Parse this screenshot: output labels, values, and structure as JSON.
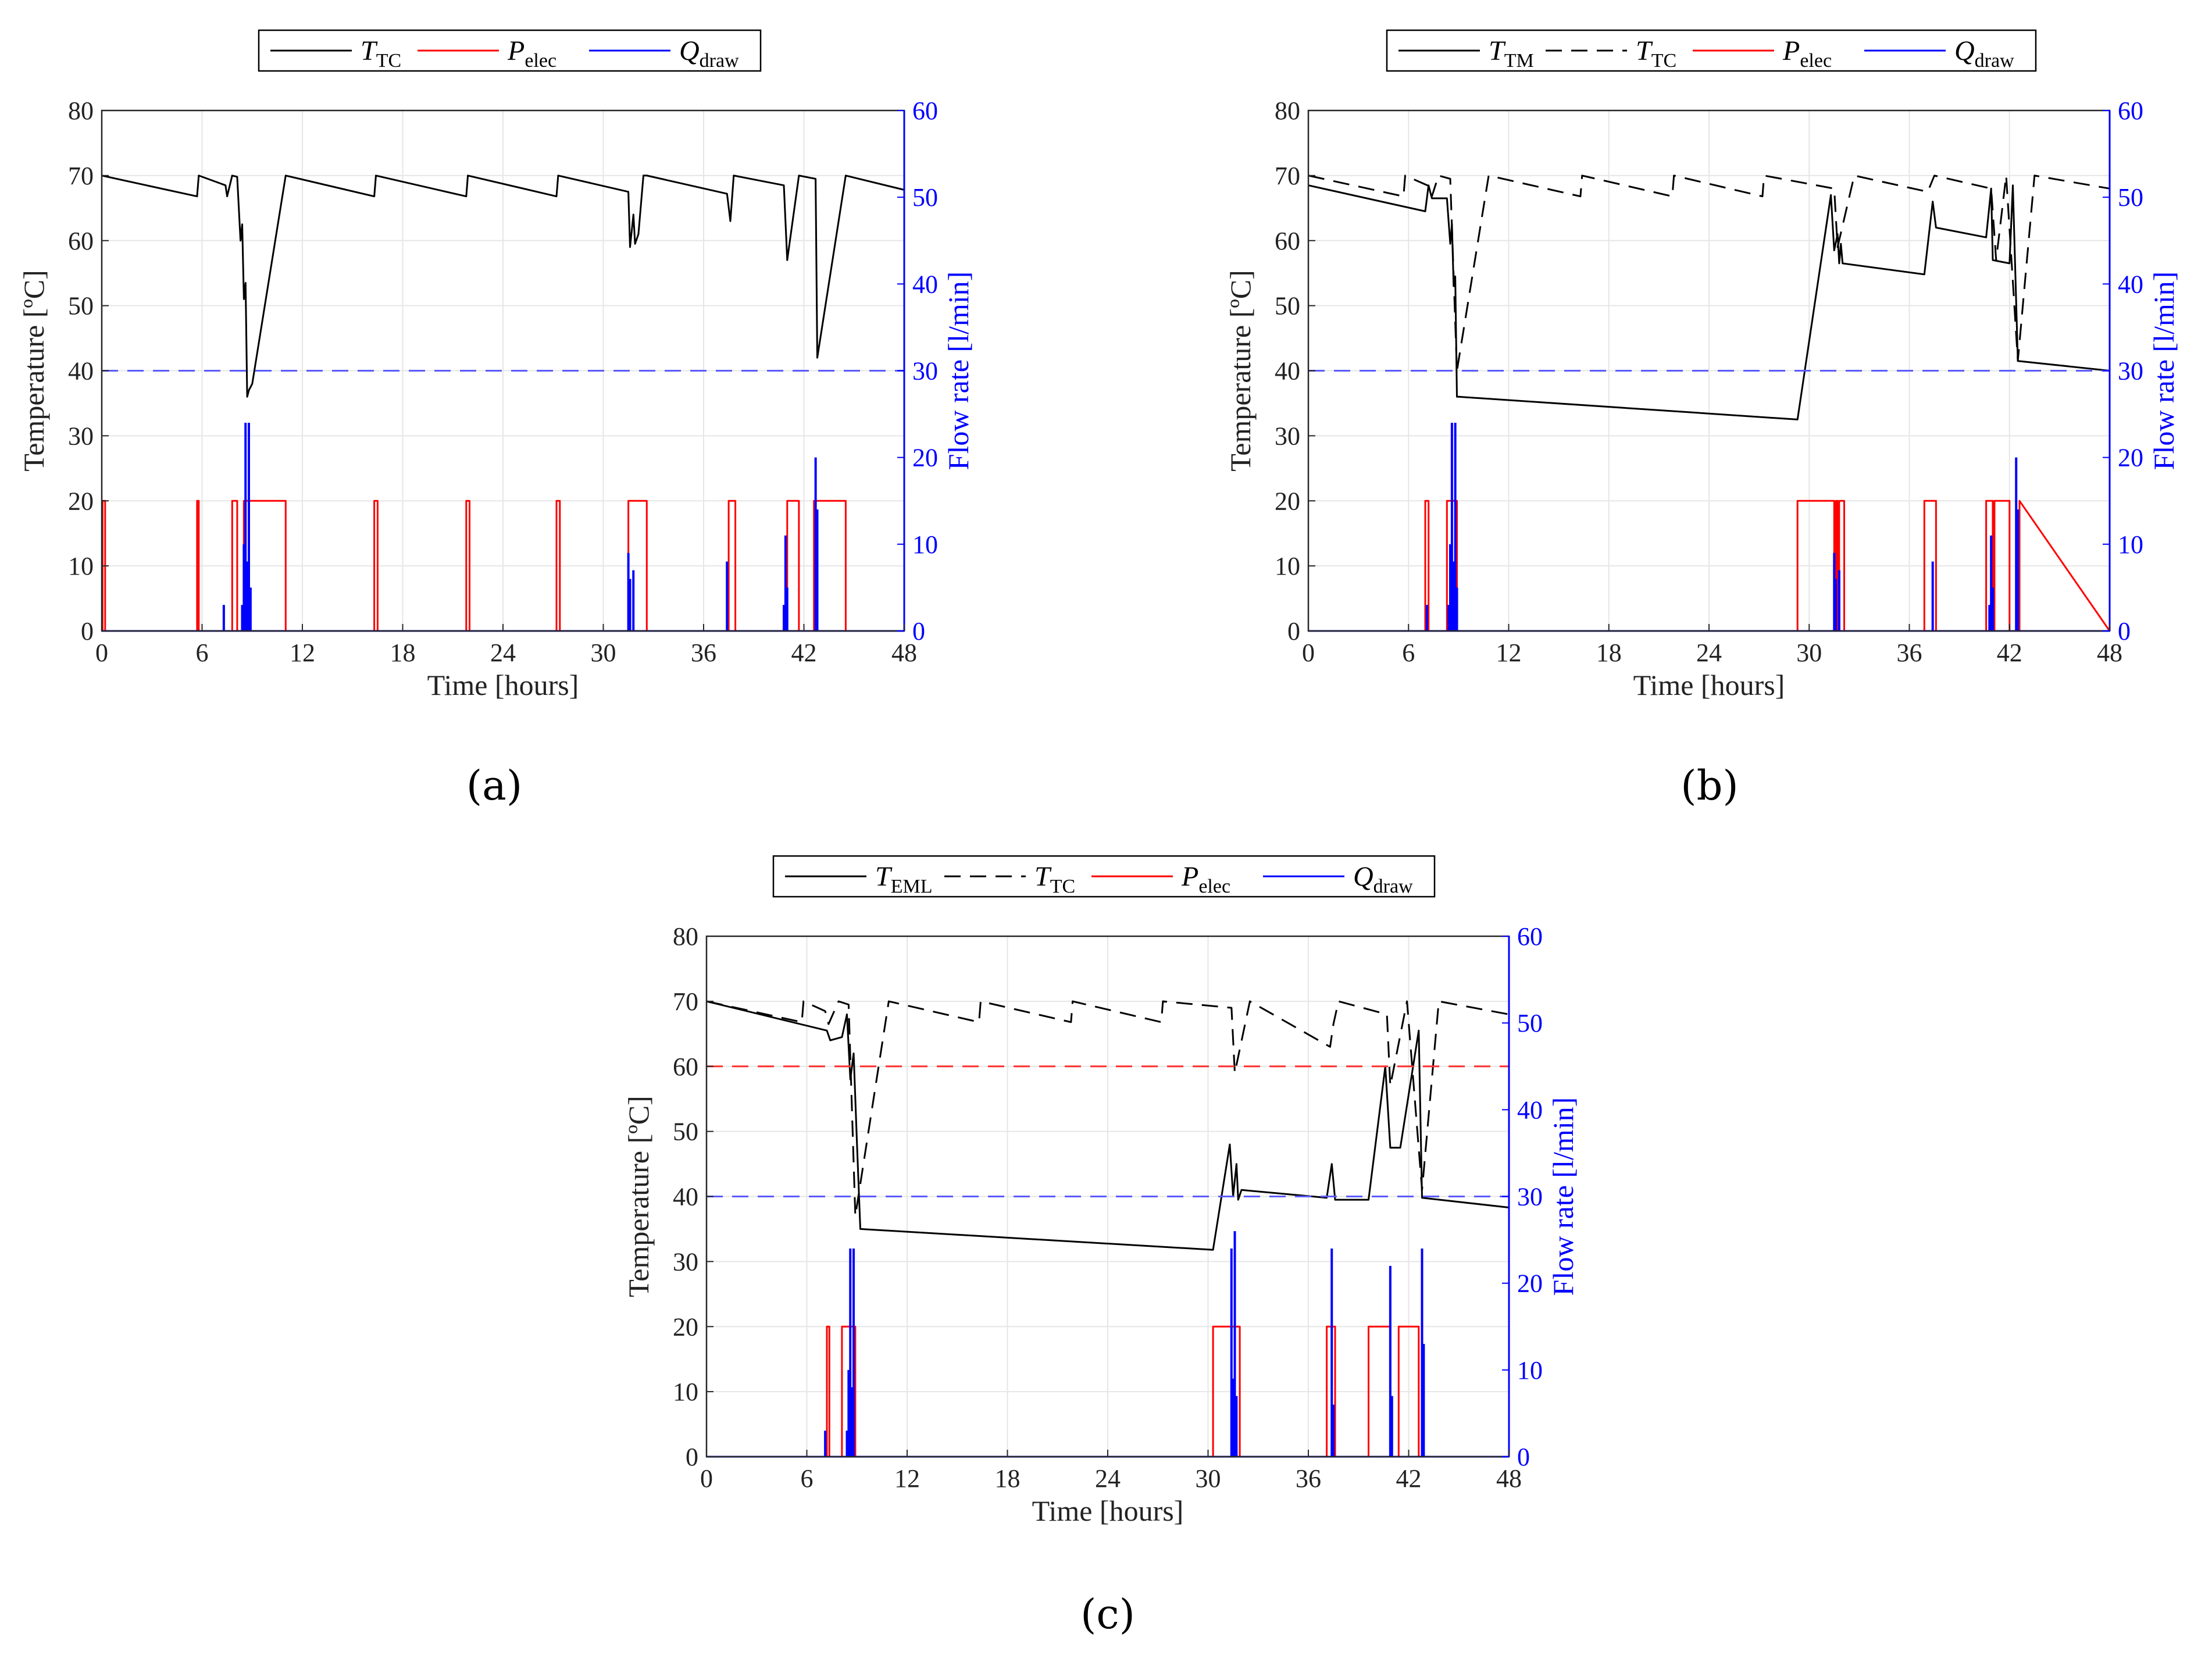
{
  "figure": {
    "panels": [
      {
        "label": "(a)"
      },
      {
        "label": "(b)"
      },
      {
        "label": "(c)"
      }
    ]
  },
  "colors": {
    "temperature": "#000000",
    "power": "#ff0000",
    "flow": "#0000ff",
    "flow_threshold": "#5a5aff",
    "temp_threshold": "#ff3030",
    "grid": "#e6e6e6",
    "axis": "#262626"
  },
  "chart_data": [
    {
      "type": "line",
      "panel": "(a)",
      "xlabel": "Time [hours]",
      "ylabel": "Temperature [ºC]",
      "ylabel_right": "Flow rate [l/min]",
      "xlim": [
        0,
        48
      ],
      "ylim": [
        0,
        80
      ],
      "ylim_right": [
        0,
        60
      ],
      "xticks": [
        0,
        6,
        12,
        18,
        24,
        30,
        36,
        42,
        48
      ],
      "yticks": [
        0,
        10,
        20,
        30,
        40,
        50,
        60,
        70,
        80
      ],
      "yticks_right": [
        0,
        10,
        20,
        30,
        40,
        50,
        60
      ],
      "grid": true,
      "legend": [
        {
          "symbol": "T",
          "sub": "TC",
          "style": "solid",
          "color": "#000000"
        },
        {
          "symbol": "P",
          "sub": "elec",
          "style": "solid",
          "color": "#ff0000"
        },
        {
          "symbol": "Q",
          "sub": "draw",
          "style": "solid",
          "color": "#0000ff"
        }
      ],
      "series": [
        {
          "name": "T_TC",
          "axis": "left",
          "style": "solid",
          "color": "#000000",
          "x": [
            0,
            5.7,
            5.8,
            7.4,
            7.5,
            7.8,
            8.1,
            8.3,
            8.4,
            8.5,
            8.6,
            8.7,
            8.8,
            9.0,
            11.0,
            16.3,
            16.4,
            21.8,
            21.9,
            27.2,
            27.3,
            31.5,
            31.6,
            31.8,
            31.9,
            32.1,
            32.4,
            32.6,
            37.4,
            37.6,
            37.8,
            40.8,
            41.0,
            41.7,
            42.7,
            42.8,
            44.5,
            48
          ],
          "y": [
            70,
            66.8,
            70,
            68.5,
            66.8,
            70,
            69.8,
            60,
            62.5,
            51,
            53.5,
            36,
            37,
            38,
            70,
            66.8,
            70,
            66.8,
            70,
            66.8,
            70,
            67.5,
            59,
            64,
            59.5,
            61,
            70,
            70,
            67.2,
            63,
            70,
            68.5,
            57,
            70,
            69.5,
            42,
            70,
            67.8
          ]
        },
        {
          "name": "P_elec",
          "axis": "left",
          "style": "solid",
          "color": "#ff0000",
          "x": [
            0,
            0.05,
            0.05,
            0.2,
            0.2,
            5.7,
            5.7,
            5.8,
            5.8,
            7.8,
            7.8,
            8.1,
            8.1,
            8.5,
            8.5,
            11.0,
            11.0,
            16.3,
            16.3,
            16.5,
            16.5,
            21.8,
            21.8,
            22.0,
            22.0,
            27.2,
            27.2,
            27.4,
            27.4,
            31.5,
            31.5,
            32.6,
            32.6,
            37.5,
            37.5,
            37.9,
            37.9,
            41.0,
            41.0,
            41.7,
            41.7,
            42.6,
            42.6,
            44.5,
            44.5,
            48
          ],
          "y": [
            0,
            0,
            20,
            20,
            0,
            0,
            20,
            20,
            0,
            0,
            20,
            20,
            0,
            0,
            20,
            20,
            0,
            0,
            20,
            20,
            0,
            0,
            20,
            20,
            0,
            0,
            20,
            20,
            0,
            0,
            20,
            20,
            0,
            0,
            20,
            20,
            0,
            0,
            20,
            20,
            0,
            0,
            20,
            20,
            0,
            0
          ]
        },
        {
          "name": "Q_draw",
          "axis": "right",
          "style": "solid",
          "color": "#0000ff",
          "spikes": [
            [
              7.3,
              3
            ],
            [
              8.4,
              3
            ],
            [
              8.5,
              10
            ],
            [
              8.6,
              24
            ],
            [
              8.7,
              8
            ],
            [
              8.8,
              24
            ],
            [
              8.9,
              5
            ],
            [
              31.5,
              9
            ],
            [
              31.6,
              6
            ],
            [
              31.8,
              7
            ],
            [
              37.4,
              8
            ],
            [
              40.8,
              3
            ],
            [
              40.9,
              11
            ],
            [
              41.0,
              5
            ],
            [
              42.7,
              20
            ],
            [
              42.8,
              14
            ]
          ]
        },
        {
          "name": "Q threshold",
          "axis": "right",
          "style": "dashed",
          "color": "#5a5aff",
          "x": [
            0,
            48
          ],
          "y": [
            30,
            30
          ]
        }
      ]
    },
    {
      "type": "line",
      "panel": "(b)",
      "xlabel": "Time [hours]",
      "ylabel": "Temperature [ºC]",
      "ylabel_right": "Flow rate [l/min]",
      "xlim": [
        0,
        48
      ],
      "ylim": [
        0,
        80
      ],
      "ylim_right": [
        0,
        60
      ],
      "xticks": [
        0,
        6,
        12,
        18,
        24,
        30,
        36,
        42,
        48
      ],
      "yticks": [
        0,
        10,
        20,
        30,
        40,
        50,
        60,
        70,
        80
      ],
      "yticks_right": [
        0,
        10,
        20,
        30,
        40,
        50,
        60
      ],
      "grid": true,
      "legend": [
        {
          "symbol": "T",
          "sub": "TM",
          "style": "solid",
          "color": "#000000"
        },
        {
          "symbol": "T",
          "sub": "TC",
          "style": "dashed",
          "color": "#000000"
        },
        {
          "symbol": "P",
          "sub": "elec",
          "style": "solid",
          "color": "#ff0000"
        },
        {
          "symbol": "Q",
          "sub": "draw",
          "style": "solid",
          "color": "#0000ff"
        }
      ],
      "series": [
        {
          "name": "T_TM",
          "axis": "left",
          "style": "solid",
          "color": "#000000",
          "x": [
            0,
            7.0,
            7.2,
            7.4,
            8.3,
            8.5,
            8.6,
            8.7,
            8.8,
            8.9,
            9.0,
            29.3,
            31.3,
            31.5,
            31.7,
            31.8,
            31.9,
            32.0,
            36.9,
            37.4,
            37.6,
            40.6,
            40.9,
            41.0,
            42.0,
            42.2,
            42.5,
            48
          ],
          "y": [
            68.5,
            64.5,
            68.5,
            66.5,
            66.5,
            59.5,
            62.5,
            53,
            54.5,
            36,
            36,
            32.5,
            67,
            58.5,
            61,
            56.5,
            59.5,
            56.5,
            54.8,
            66,
            62,
            60.5,
            68,
            57,
            56.5,
            68.5,
            41.5,
            40
          ]
        },
        {
          "name": "T_TC",
          "axis": "left",
          "style": "dashed",
          "color": "#000000",
          "x": [
            0,
            5.7,
            5.8,
            7.3,
            7.4,
            7.8,
            8.5,
            8.9,
            10.8,
            16.3,
            16.4,
            21.8,
            21.9,
            27.2,
            27.3,
            31.5,
            31.7,
            32.7,
            37.1,
            37.5,
            40.9,
            41.2,
            41.8,
            42.5,
            43.5,
            48
          ],
          "y": [
            70,
            66.8,
            70,
            68.3,
            66.8,
            70,
            69.5,
            40,
            70,
            66.8,
            70,
            66.8,
            70,
            66.8,
            70,
            68,
            59,
            70,
            67.5,
            70,
            68,
            57,
            70,
            41.5,
            70,
            68
          ]
        },
        {
          "name": "P_elec",
          "axis": "left",
          "style": "solid",
          "color": "#ff0000",
          "x": [
            0,
            7.0,
            7.0,
            7.2,
            7.2,
            8.3,
            8.3,
            8.9,
            8.9,
            29.3,
            29.3,
            31.5,
            31.5,
            31.6,
            31.6,
            31.7,
            31.7,
            31.8,
            31.8,
            32.1,
            32.1,
            36.9,
            36.9,
            37.6,
            37.6,
            40.6,
            40.6,
            41.0,
            41.0,
            41.1,
            41.1,
            42.0,
            42.0,
            42.6,
            42.6,
            48
          ],
          "y": [
            0,
            0,
            20,
            20,
            0,
            0,
            20,
            20,
            0,
            0,
            20,
            20,
            0,
            0,
            20,
            20,
            0,
            0,
            20,
            20,
            0,
            0,
            20,
            20,
            0,
            0,
            20,
            20,
            0,
            0,
            20,
            20,
            0,
            0,
            20,
            0
          ]
        },
        {
          "name": "Q_draw",
          "axis": "right",
          "style": "solid",
          "color": "#0000ff",
          "spikes": [
            [
              7.1,
              3
            ],
            [
              8.4,
              3
            ],
            [
              8.5,
              10
            ],
            [
              8.6,
              24
            ],
            [
              8.7,
              8
            ],
            [
              8.8,
              24
            ],
            [
              8.9,
              5
            ],
            [
              31.5,
              9
            ],
            [
              31.6,
              6
            ],
            [
              31.8,
              7
            ],
            [
              37.4,
              8
            ],
            [
              40.8,
              3
            ],
            [
              40.9,
              11
            ],
            [
              41.0,
              5
            ],
            [
              42.4,
              20
            ],
            [
              42.5,
              14
            ]
          ]
        },
        {
          "name": "Q threshold",
          "axis": "right",
          "style": "dashed",
          "color": "#5a5aff",
          "x": [
            0,
            48
          ],
          "y": [
            30,
            30
          ]
        }
      ]
    },
    {
      "type": "line",
      "panel": "(c)",
      "xlabel": "Time [hours]",
      "ylabel": "Temperature [ºC]",
      "ylabel_right": "Flow rate [l/min]",
      "xlim": [
        0,
        48
      ],
      "ylim": [
        0,
        80
      ],
      "ylim_right": [
        0,
        60
      ],
      "xticks": [
        0,
        6,
        12,
        18,
        24,
        30,
        36,
        42,
        48
      ],
      "yticks": [
        0,
        10,
        20,
        30,
        40,
        50,
        60,
        70,
        80
      ],
      "yticks_right": [
        0,
        10,
        20,
        30,
        40,
        50,
        60
      ],
      "grid": true,
      "legend": [
        {
          "symbol": "T",
          "sub": "EML",
          "style": "solid",
          "color": "#000000"
        },
        {
          "symbol": "T",
          "sub": "TC",
          "style": "dashed",
          "color": "#000000"
        },
        {
          "symbol": "P",
          "sub": "elec",
          "style": "solid",
          "color": "#ff0000"
        },
        {
          "symbol": "Q",
          "sub": "draw",
          "style": "solid",
          "color": "#0000ff"
        }
      ],
      "series": [
        {
          "name": "T_EML",
          "axis": "left",
          "style": "solid",
          "color": "#000000",
          "x": [
            0,
            7.2,
            7.4,
            8.1,
            8.4,
            8.6,
            8.8,
            9.0,
            9.2,
            30.3,
            31.3,
            31.5,
            31.7,
            31.8,
            32.0,
            37.1,
            37.4,
            37.6,
            39.6,
            40.6,
            40.9,
            41.5,
            42.6,
            42.8,
            48
          ],
          "y": [
            70,
            65.5,
            64,
            64.5,
            68,
            58,
            62,
            48,
            35,
            31.8,
            48,
            40,
            45,
            39.5,
            41,
            39.8,
            45,
            39.5,
            39.5,
            60,
            47.5,
            47.5,
            65.5,
            39.8,
            38.3
          ]
        },
        {
          "name": "T_TC",
          "axis": "left",
          "style": "dashed",
          "color": "#000000",
          "x": [
            0,
            5.7,
            5.8,
            7.1,
            7.3,
            7.9,
            8.5,
            8.9,
            10.9,
            16.3,
            16.4,
            21.8,
            21.9,
            27.2,
            27.3,
            31.4,
            31.6,
            32.5,
            37.3,
            37.5,
            37.8,
            40.7,
            40.9,
            41.9,
            42.8,
            43.8,
            48
          ],
          "y": [
            70,
            66.8,
            70,
            68.5,
            66.5,
            70,
            69.5,
            37,
            70,
            66.8,
            70,
            66.8,
            70,
            66.8,
            70,
            69,
            59,
            70,
            63,
            66.5,
            70,
            68,
            57,
            70,
            41,
            70,
            68
          ]
        },
        {
          "name": "P_elec",
          "axis": "left",
          "style": "solid",
          "color": "#ff0000",
          "x": [
            0,
            7.2,
            7.2,
            7.35,
            7.35,
            8.1,
            8.1,
            8.9,
            8.9,
            30.3,
            30.3,
            31.9,
            31.9,
            37.1,
            37.1,
            37.6,
            37.6,
            39.6,
            39.6,
            40.9,
            40.9,
            41.4,
            41.4,
            42.6,
            42.6,
            48
          ],
          "y": [
            0,
            0,
            20,
            20,
            0,
            0,
            20,
            20,
            0,
            0,
            20,
            20,
            0,
            0,
            20,
            20,
            0,
            0,
            20,
            20,
            0,
            0,
            20,
            20,
            0,
            0
          ]
        },
        {
          "name": "Q_draw",
          "axis": "right",
          "style": "solid",
          "color": "#0000ff",
          "spikes": [
            [
              7.1,
              3
            ],
            [
              8.4,
              3
            ],
            [
              8.5,
              10
            ],
            [
              8.6,
              24
            ],
            [
              8.7,
              8
            ],
            [
              8.8,
              24
            ],
            [
              31.4,
              24
            ],
            [
              31.5,
              9
            ],
            [
              31.6,
              26
            ],
            [
              31.7,
              7
            ],
            [
              37.4,
              24
            ],
            [
              37.5,
              6
            ],
            [
              40.9,
              22
            ],
            [
              41.0,
              7
            ],
            [
              42.8,
              24
            ],
            [
              42.9,
              13
            ]
          ]
        },
        {
          "name": "T threshold",
          "axis": "left",
          "style": "dashed",
          "color": "#ff3030",
          "x": [
            0,
            48
          ],
          "y": [
            60,
            60
          ]
        },
        {
          "name": "Q threshold",
          "axis": "right",
          "style": "dashed",
          "color": "#5a5aff",
          "x": [
            0,
            48
          ],
          "y": [
            30,
            30
          ]
        }
      ]
    }
  ]
}
